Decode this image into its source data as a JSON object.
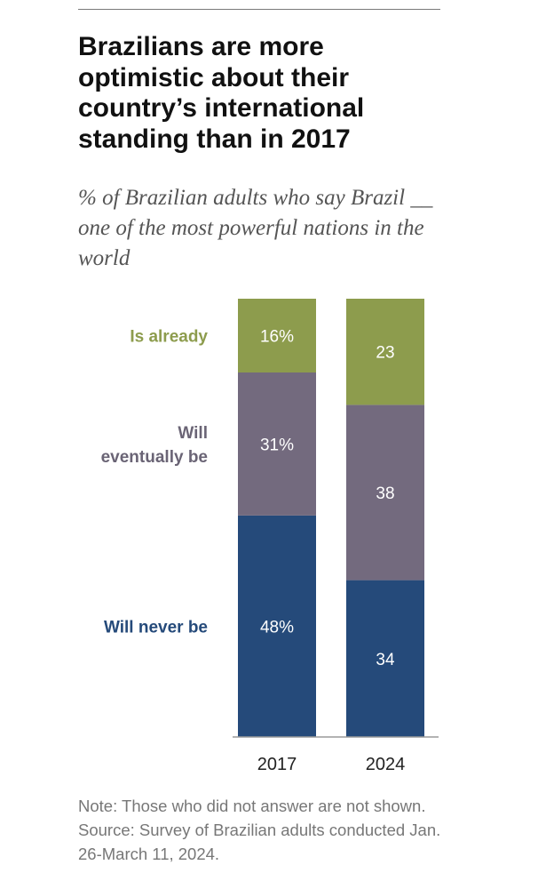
{
  "header": {
    "title": "Brazilians are more optimistic about their country’s international standing than in 2017",
    "subtitle": "% of Brazilian adults who say Brazil __ one of the most powerful nations in the world"
  },
  "chart_data": {
    "type": "bar",
    "stacked": true,
    "orientation": "vertical",
    "categories": [
      "2017",
      "2024"
    ],
    "series": [
      {
        "name": "Will never be",
        "values": [
          48,
          34
        ],
        "labels": [
          "48%",
          "34"
        ],
        "color": "#254a7a",
        "label_color": "#254a7a"
      },
      {
        "name": "Will eventually be",
        "values": [
          31,
          38
        ],
        "labels": [
          "31%",
          "38"
        ],
        "color": "#736a7e",
        "label_color": "#6a6475"
      },
      {
        "name": "Is already",
        "values": [
          16,
          23
        ],
        "labels": [
          "16%",
          "23"
        ],
        "color": "#8d9c4d",
        "label_color": "#8d9c4d"
      }
    ],
    "ylim": [
      0,
      100
    ],
    "legend": "left",
    "grid": false,
    "value_label_color": "#ffffff"
  },
  "footer": {
    "note": "Note: Those who did not answer are not shown.",
    "source": "Source: Survey of Brazilian adults conducted Jan. 26-March 11, 2024."
  }
}
